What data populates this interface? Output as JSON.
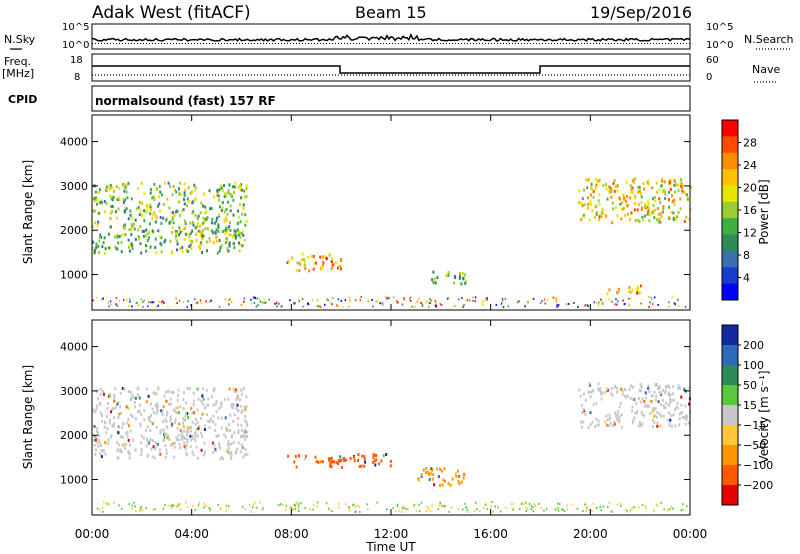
{
  "header": {
    "station": "Adak West (fitACF)",
    "beam": "Beam 15",
    "date": "19/Sep/2016"
  },
  "panels": {
    "nsky": {
      "left_label": "N.Sky",
      "right_label": "N.Search",
      "ticks_left": [
        "10^5",
        "10^0"
      ],
      "ticks_right": [
        "10^5",
        "10^0"
      ]
    },
    "freq": {
      "left_label_1": "Freq.",
      "left_label_2": "[MHz]",
      "right_label": "Nave",
      "ticks_left": [
        "18",
        "8"
      ],
      "ticks_right": [
        "60",
        "0"
      ]
    },
    "cpid": {
      "left_label": "CPID",
      "mode": "normalsound (fast) 157 RF"
    }
  },
  "chart_data": [
    {
      "type": "heatmap",
      "name_on_chart": "Power",
      "ylabel": "Slant Range [km]",
      "xlabel": "Time UT",
      "x_range_hours": [
        0,
        24
      ],
      "y_range_km": [
        200,
        4600
      ],
      "y_ticks": [
        "4000",
        "3000",
        "2000",
        "1000"
      ],
      "x_ticks": [
        "00:00",
        "04:00",
        "08:00",
        "12:00",
        "16:00",
        "20:00",
        "00:00"
      ],
      "colorbar": {
        "label": "Power [dB]",
        "ticks": [
          "28",
          "24",
          "20",
          "16",
          "12",
          "8",
          "4"
        ],
        "colors": [
          "#ff0000",
          "#ff4a00",
          "#ff8c00",
          "#ffc000",
          "#e6e600",
          "#9acd32",
          "#3cb043",
          "#2e8b57",
          "#3a6fb0",
          "#1a3ccc",
          "#0000ff"
        ]
      },
      "regions": [
        {
          "t_start": 0.0,
          "t_end": 6.2,
          "r_low": 1500,
          "r_high": 3100,
          "level": 12
        },
        {
          "t_start": 7.8,
          "t_end": 10.0,
          "r_low": 1100,
          "r_high": 1500,
          "level": 20
        },
        {
          "t_start": 13.5,
          "t_end": 15.0,
          "r_low": 800,
          "r_high": 1100,
          "level": 12
        },
        {
          "t_start": 19.5,
          "t_end": 24.0,
          "r_low": 2200,
          "r_high": 3200,
          "level": 16
        },
        {
          "t_start": 20.5,
          "t_end": 22.0,
          "r_low": 600,
          "r_high": 800,
          "level": 20
        }
      ]
    },
    {
      "type": "heatmap",
      "name_on_chart": "Velocity",
      "ylabel": "Slant Range [km]",
      "xlabel": "Time UT",
      "x_range_hours": [
        0,
        24
      ],
      "y_range_km": [
        200,
        4600
      ],
      "y_ticks": [
        "4000",
        "3000",
        "2000",
        "1000"
      ],
      "x_ticks": [
        "00:00",
        "04:00",
        "08:00",
        "12:00",
        "16:00",
        "20:00",
        "00:00"
      ],
      "colorbar": {
        "label": "Velocity [m s⁻¹]",
        "ticks": [
          "200",
          "100",
          "50",
          "15",
          "−15",
          "−50",
          "−100",
          "−200"
        ],
        "colors": [
          "#1428a0",
          "#2e6ab8",
          "#2e8b57",
          "#5ac83c",
          "#c8c8c8",
          "#ffc83c",
          "#ff9600",
          "#ff5a00",
          "#e60000"
        ]
      },
      "regions": [
        {
          "t_start": 0.0,
          "t_end": 6.2,
          "r_low": 1500,
          "r_high": 3100,
          "velocity": 0
        },
        {
          "t_start": 7.8,
          "t_end": 12.0,
          "r_low": 1300,
          "r_high": 1600,
          "velocity": -150
        },
        {
          "t_start": 13.0,
          "t_end": 15.0,
          "r_low": 900,
          "r_high": 1300,
          "velocity": -60
        },
        {
          "t_start": 19.5,
          "t_end": 24.0,
          "r_low": 2200,
          "r_high": 3200,
          "velocity": 0
        }
      ]
    }
  ],
  "colors": {
    "frame": "#000000",
    "background": "#ffffff"
  }
}
